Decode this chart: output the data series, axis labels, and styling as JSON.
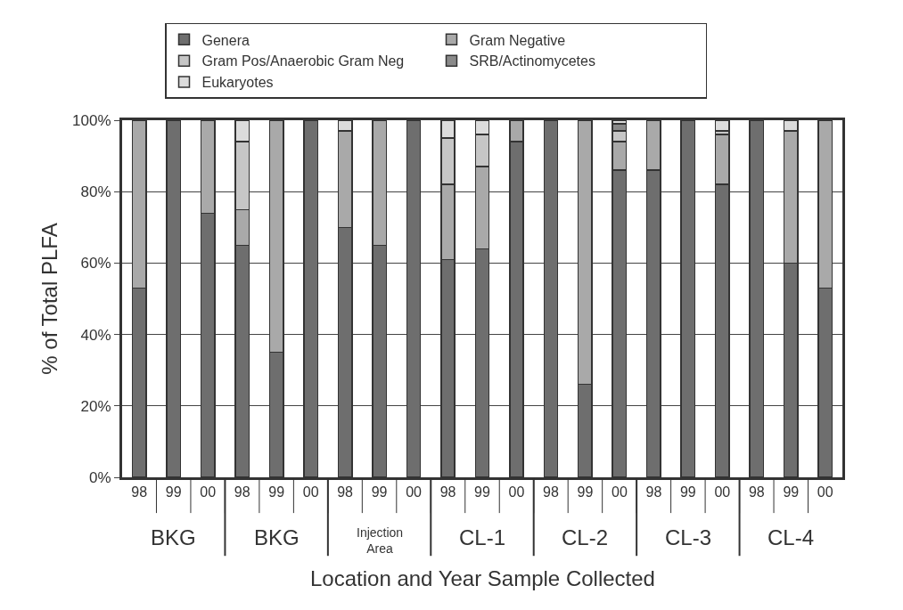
{
  "chart_data": {
    "type": "bar",
    "stacked": true,
    "xlabel": "Location and Year Sample Collected",
    "ylabel": "% of Total PLFA",
    "categories": [
      "98",
      "99",
      "00",
      "98",
      "99",
      "00",
      "98",
      "99",
      "00",
      "98",
      "99",
      "00",
      "98",
      "99",
      "00",
      "98",
      "99",
      "00",
      "98",
      "99",
      "00"
    ],
    "series": [
      {
        "name": "Genera",
        "color": "#6e6e6e",
        "values": [
          53,
          100,
          74,
          65,
          35,
          100,
          70,
          65,
          100,
          61,
          64,
          94,
          100,
          26,
          86,
          86,
          100,
          82,
          100,
          60,
          53
        ]
      },
      {
        "name": "Gram Negative",
        "color": "#a9a9a9",
        "values": [
          47,
          null,
          26,
          10,
          65,
          null,
          27,
          35,
          null,
          21,
          23,
          6,
          null,
          74,
          8,
          14,
          null,
          14,
          null,
          37,
          47
        ]
      },
      {
        "name": "Gram Pos/Anaerobic Gram Neg",
        "color": "#c6c6c6",
        "values": [
          null,
          null,
          null,
          19,
          null,
          null,
          null,
          null,
          null,
          13,
          9,
          null,
          null,
          null,
          3,
          null,
          null,
          1,
          null,
          null,
          null
        ]
      },
      {
        "name": "SRB/Actinomycetes",
        "color": "#8a8a8a",
        "values": [
          null,
          null,
          null,
          null,
          null,
          null,
          null,
          null,
          null,
          null,
          null,
          null,
          null,
          null,
          2,
          null,
          null,
          null,
          null,
          null,
          null
        ]
      },
      {
        "name": "Eukaryotes",
        "color": "#dcdcdc",
        "values": [
          null,
          null,
          null,
          6,
          null,
          null,
          3,
          null,
          null,
          5,
          4,
          null,
          null,
          null,
          1,
          null,
          null,
          3,
          null,
          3,
          null
        ]
      }
    ],
    "ylim": [
      0,
      100
    ],
    "yticks": [
      {
        "value": 0,
        "label": "0%"
      },
      {
        "value": 20,
        "label": "20%"
      },
      {
        "value": 40,
        "label": "40%"
      },
      {
        "value": 60,
        "label": "60%"
      },
      {
        "value": 80,
        "label": "80%"
      },
      {
        "value": 100,
        "label": "100%"
      }
    ],
    "grid": "y",
    "legend": "top",
    "annotations": [
      "BKG",
      "BKG",
      "Injection\nArea",
      "CL-1",
      "CL-2",
      "CL-3",
      "CL-4"
    ]
  }
}
